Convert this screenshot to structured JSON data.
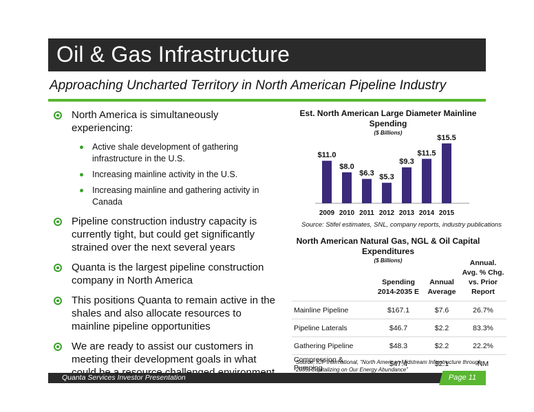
{
  "header": {
    "title": "Oil & Gas Infrastructure",
    "subtitle": "Approaching Uncharted Territory in North American Pipeline Industry"
  },
  "bullets": {
    "b1": "North America is simultaneously experiencing:",
    "b1_sub": [
      "Active shale development of gathering infrastructure in the U.S.",
      "Increasing mainline activity in the U.S.",
      "Increasing mainline and gathering activity in Canada"
    ],
    "b2": "Pipeline construction industry capacity is currently tight, but could get significantly strained over the next several years",
    "b3": "Quanta is the largest pipeline construction company in North America",
    "b4": "This positions Quanta to remain active in the shales and also allocate resources to mainline pipeline opportunities",
    "b5": "We are ready to assist our customers in meeting their development goals in what could be a resource challenged environment"
  },
  "chart_data": {
    "type": "bar",
    "title": "Est. North American Large Diameter Mainline Spending",
    "unit_label": "($ Billions)",
    "categories": [
      "2009",
      "2010",
      "2011",
      "2012",
      "2013",
      "2014",
      "2015"
    ],
    "values": [
      11.0,
      8.0,
      6.3,
      5.3,
      9.3,
      11.5,
      15.5
    ],
    "data_labels": [
      "$11.0",
      "$8.0",
      "$6.3",
      "$5.3",
      "$9.3",
      "$11.5",
      "$15.5"
    ],
    "ylim": [
      0,
      16
    ],
    "bar_color": "#3b2a7a",
    "grid": false,
    "source": "Source: Stifel estimates, SNL, company reports, industry publications"
  },
  "capex": {
    "title": "North American Natural Gas, NGL & Oil Capital Expenditures",
    "unit_label": "($ Billions)",
    "headers": [
      "",
      "Spending 2014-2035 E",
      "Annual Average",
      "Annual. Avg. % Chg. vs. Prior Report"
    ],
    "rows": [
      [
        "Mainline Pipeline",
        "$167.1",
        "$7.6",
        "26.7%"
      ],
      [
        "Pipeline Laterals",
        "$46.7",
        "$2.2",
        "83.3%"
      ],
      [
        "Gathering Pipeline",
        "$48.3",
        "$2.2",
        "22.2%"
      ],
      [
        "Compression & Pumping",
        "$47.4",
        "$2.1",
        "NM"
      ]
    ],
    "source": "Source: ICF International, “North American Midstream Infrastructure through 2035: Capitalizing on Our Energy Abundance”"
  },
  "footer": {
    "left": "Quanta Services Investor Presentation",
    "page": "Page 11"
  },
  "colors": {
    "accent_green": "#59b731",
    "dark_bar": "#2a2a2a",
    "bar_purple": "#3b2a7a"
  }
}
